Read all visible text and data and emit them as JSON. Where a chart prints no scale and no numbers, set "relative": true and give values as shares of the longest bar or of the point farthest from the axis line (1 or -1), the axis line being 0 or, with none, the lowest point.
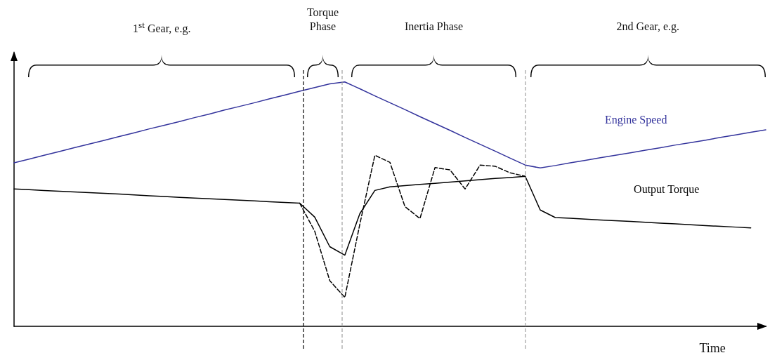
{
  "chart_data": {
    "type": "line",
    "relative": true,
    "xlabel": "Time",
    "marker": "none",
    "categories": [
      null,
      null,
      null,
      null,
      null,
      null,
      null,
      null,
      null,
      null,
      null,
      null,
      null,
      null,
      null,
      null,
      null,
      null,
      null,
      null,
      null,
      null,
      null,
      null,
      null,
      null,
      null,
      null,
      null,
      null,
      null,
      null,
      null,
      null,
      null,
      null,
      null,
      null,
      null,
      null,
      null,
      null,
      null,
      null,
      null,
      null,
      null,
      null,
      null,
      null,
      null
    ],
    "series": [
      {
        "name": "Engine Speed",
        "color": "#33339c",
        "line_style": "solid",
        "values": [
          0.669,
          0.684,
          0.7,
          0.715,
          0.731,
          0.746,
          0.761,
          0.777,
          0.792,
          0.808,
          0.823,
          0.838,
          0.854,
          0.869,
          0.885,
          0.9,
          0.915,
          0.931,
          0.946,
          0.962,
          0.977,
          0.992,
          1.0,
          0.972,
          0.943,
          0.915,
          0.887,
          0.858,
          0.83,
          0.802,
          0.773,
          0.745,
          0.717,
          0.688,
          0.66,
          0.648,
          0.658,
          0.669,
          0.679,
          0.69,
          0.7,
          0.71,
          0.721,
          0.731,
          0.742,
          0.752,
          0.762,
          0.773,
          0.783,
          0.794,
          0.804
        ]
      },
      {
        "name": "Output Torque",
        "color": "#000000",
        "line_style": "solid",
        "values": [
          0.562,
          0.559,
          0.556,
          0.553,
          0.55,
          0.547,
          0.544,
          0.541,
          0.538,
          0.534,
          0.531,
          0.528,
          0.525,
          0.522,
          0.519,
          0.516,
          0.513,
          0.51,
          0.507,
          0.504,
          0.447,
          0.326,
          0.291,
          0.461,
          0.556,
          0.571,
          0.576,
          0.581,
          0.585,
          0.59,
          0.595,
          0.6,
          0.605,
          0.609,
          0.614,
          0.476,
          0.445,
          0.442,
          0.439,
          0.435,
          0.432,
          0.429,
          0.426,
          0.422,
          0.419,
          0.416,
          0.412,
          0.409,
          0.406,
          0.403,
          null
        ]
      },
      {
        "color": "#000000",
        "line_style": "dashed",
        "values": [
          null,
          null,
          null,
          null,
          null,
          null,
          null,
          null,
          null,
          null,
          null,
          null,
          null,
          null,
          null,
          null,
          null,
          null,
          null,
          0.504,
          0.389,
          0.187,
          0.118,
          0.418,
          0.7,
          0.671,
          0.49,
          0.441,
          0.65,
          0.64,
          0.562,
          0.66,
          0.655,
          0.628,
          0.614,
          null,
          null,
          null,
          null,
          null,
          null,
          null,
          null,
          null,
          null,
          null,
          null,
          null,
          null,
          null,
          null
        ]
      }
    ],
    "annotations": [
      "1$^{st}$ Gear, e.g.",
      "Torque Phase",
      "Inertia Phase",
      "2nd Gear, e.g."
    ]
  }
}
